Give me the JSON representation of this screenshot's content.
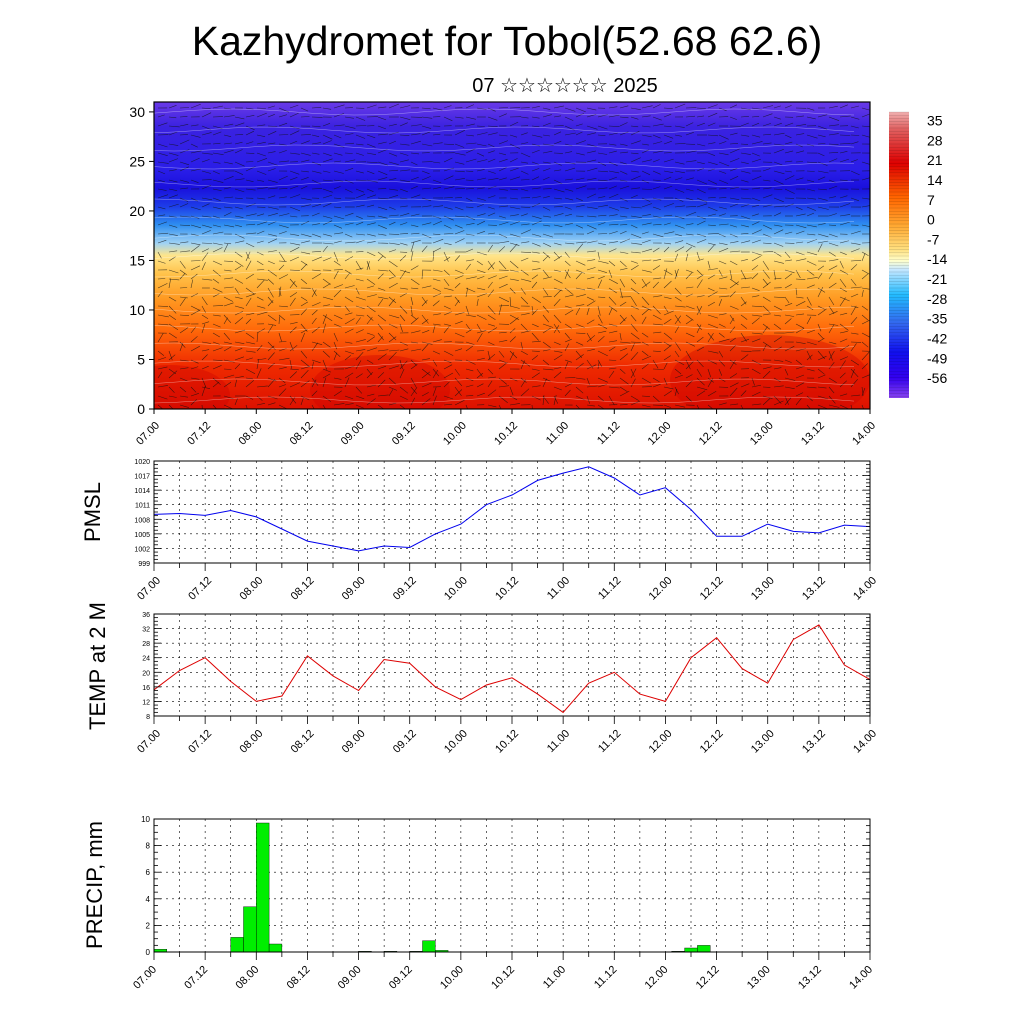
{
  "header": {
    "title": "Kazhydromet for Tobol(52.68 62.6)",
    "subtitle": "07 ☆☆☆☆☆☆ 2025"
  },
  "time_labels": [
    "07.00",
    "07.12",
    "08.00",
    "08.12",
    "09.00",
    "09.12",
    "10.00",
    "10.12",
    "11.00",
    "11.12",
    "12.00",
    "12.12",
    "13.00",
    "13.12",
    "14.00"
  ],
  "colors": {
    "pmsl_line": "#0000ee",
    "temp_line": "#dd0000",
    "precip_bar": "#00ee00",
    "grid": "#000000"
  },
  "chart_data": [
    {
      "type": "heatmap",
      "name": "cross-section",
      "x_range": [
        0,
        7
      ],
      "y_range": [
        0,
        31
      ],
      "y_ticks": [
        0,
        5,
        10,
        15,
        20,
        25,
        30
      ],
      "colorbar": {
        "labels": [
          "35",
          "28",
          "21",
          "14",
          "7",
          "0",
          "-7",
          "-14",
          "-21",
          "-28",
          "-35",
          "-42",
          "-49",
          "-56"
        ],
        "range": [
          -63,
          38
        ]
      }
    },
    {
      "type": "line",
      "ylabel": "PMSL",
      "ylim": [
        999,
        1020
      ],
      "y_ticks": [
        999,
        1002,
        1005,
        1008,
        1011,
        1014,
        1017,
        1020
      ],
      "x": [
        0,
        0.25,
        0.5,
        0.75,
        1,
        1.25,
        1.5,
        1.75,
        2,
        2.25,
        2.5,
        2.75,
        3,
        3.25,
        3.5,
        3.75,
        4,
        4.25,
        4.5,
        4.75,
        5,
        5.25,
        5.5,
        5.75,
        6,
        6.25,
        6.5,
        6.75,
        7
      ],
      "values": [
        1009,
        1009.2,
        1008.8,
        1009.8,
        1008.5,
        1006.0,
        1003.5,
        1002.5,
        1001.5,
        1002.5,
        1002.2,
        1005.0,
        1007.0,
        1011.0,
        1013.0,
        1016.0,
        1017.5,
        1018.8,
        1016.5,
        1013.0,
        1014.5,
        1010.0,
        1004.5,
        1004.5,
        1007.0,
        1005.5,
        1005.2,
        1006.8,
        1006.5
      ]
    },
    {
      "type": "line",
      "ylabel": "TEMP at 2 M",
      "ylim": [
        8,
        36
      ],
      "y_ticks": [
        8,
        12,
        16,
        20,
        24,
        28,
        32,
        36
      ],
      "x": [
        0,
        0.25,
        0.5,
        0.75,
        1,
        1.25,
        1.5,
        1.75,
        2,
        2.25,
        2.5,
        2.75,
        3,
        3.25,
        3.5,
        3.75,
        4,
        4.25,
        4.5,
        4.75,
        5,
        5.25,
        5.5,
        5.75,
        6,
        6.25,
        6.5,
        6.75,
        7
      ],
      "values": [
        15.2,
        20.5,
        24.0,
        17.5,
        12.0,
        13.5,
        24.5,
        19.0,
        15.0,
        23.5,
        22.5,
        16.0,
        12.5,
        16.5,
        18.5,
        14.0,
        9.0,
        17.0,
        20.0,
        14.0,
        12.0,
        24.0,
        29.5,
        21.0,
        17.0,
        29.0,
        33.0,
        22.0,
        18.0
      ]
    },
    {
      "type": "bar",
      "ylabel": "PRECIP, mm",
      "ylim": [
        0,
        10
      ],
      "y_ticks": [
        0,
        2,
        4,
        6,
        8,
        10
      ],
      "bar_width": 0.125,
      "x": [
        0.0625,
        0.8125,
        0.9375,
        1.0625,
        1.1875,
        2.0625,
        2.3125,
        2.5625,
        2.6875,
        2.8125,
        5.125,
        5.25,
        5.375
      ],
      "values": [
        0.2,
        1.1,
        3.4,
        9.7,
        0.6,
        0.05,
        0.05,
        0.05,
        0.85,
        0.12,
        0.05,
        0.3,
        0.5
      ]
    }
  ]
}
